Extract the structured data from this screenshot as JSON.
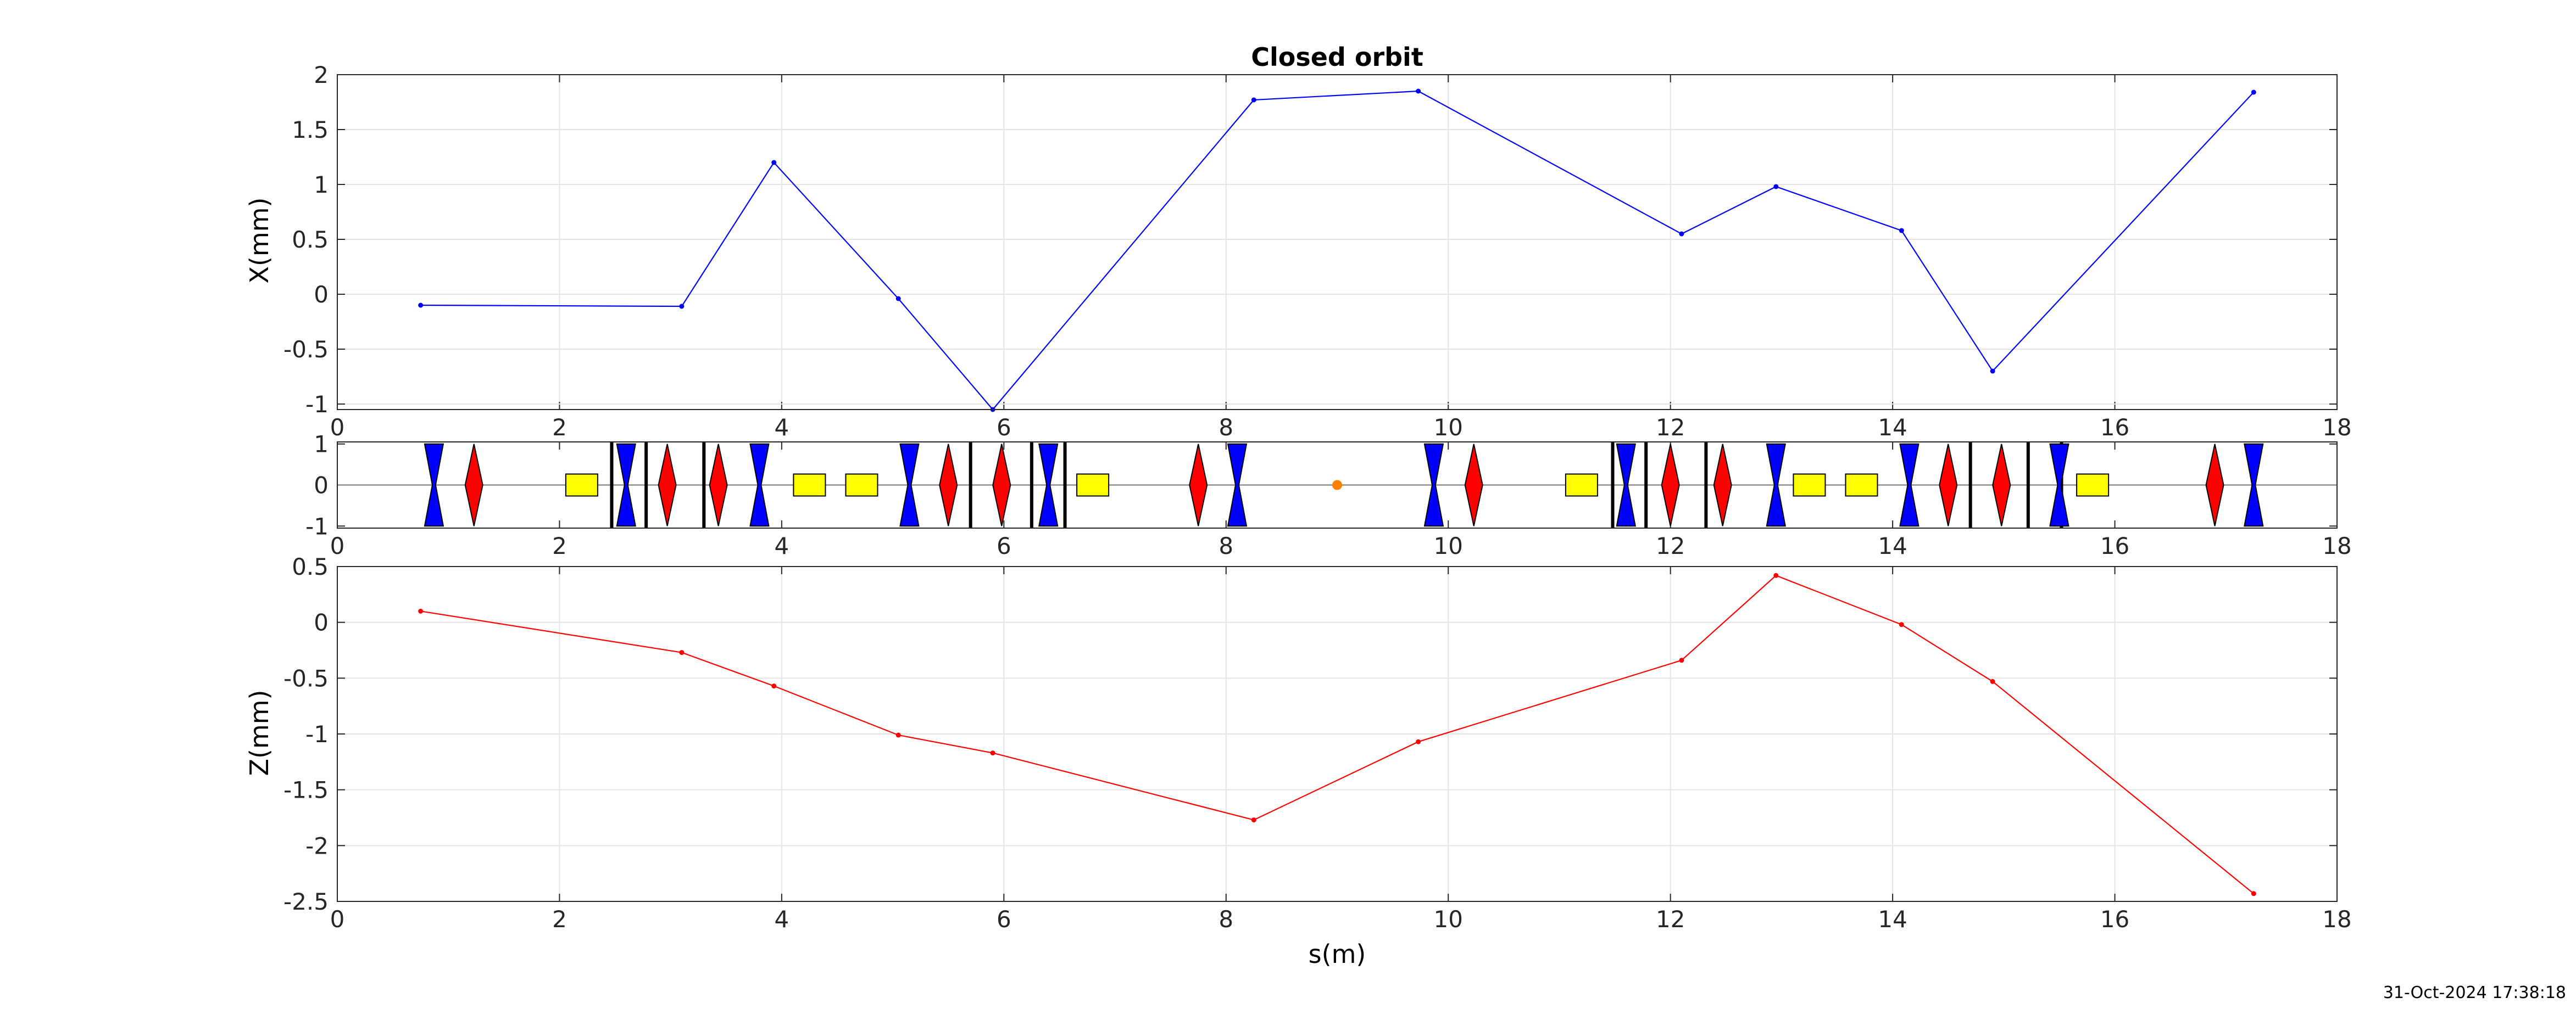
{
  "timestamp": "31-Oct-2024 17:38:18",
  "chart_data": [
    {
      "type": "line",
      "title": "Closed orbit",
      "xlabel": "",
      "ylabel": "X(mm)",
      "xlim": [
        0,
        18
      ],
      "ylim": [
        -1.05,
        2
      ],
      "xticks": [
        "0",
        "2",
        "4",
        "6",
        "8",
        "10",
        "12",
        "14",
        "16",
        "18"
      ],
      "yticks": [
        "-1",
        "-0.5",
        "0",
        "0.5",
        "1",
        "1.5",
        "2"
      ],
      "grid": true,
      "color": "#0000ff",
      "x": [
        0.75,
        3.1,
        3.93,
        5.05,
        5.9,
        8.25,
        9.73,
        12.1,
        12.95,
        14.08,
        14.9,
        17.25
      ],
      "y": [
        -0.1,
        -0.11,
        1.2,
        -0.04,
        -1.05,
        1.77,
        1.85,
        0.55,
        0.98,
        0.58,
        -0.7,
        1.84
      ]
    },
    {
      "type": "lattice",
      "xlim": [
        0,
        18
      ],
      "ylim": [
        -1.05,
        1.05
      ],
      "xticks": [
        "0",
        "2",
        "4",
        "6",
        "8",
        "10",
        "12",
        "14",
        "16",
        "18"
      ],
      "yticks": [
        "-1",
        "0",
        "1"
      ],
      "defocusing_quads": [
        0.87,
        2.6,
        3.8,
        5.15,
        6.4,
        8.1,
        9.87,
        11.6,
        12.95,
        14.15,
        15.5,
        17.25
      ],
      "focusing_quads": [
        1.23,
        2.97,
        3.43,
        5.5,
        5.98,
        7.75,
        10.23,
        12.0,
        12.47,
        14.5,
        14.98,
        16.9
      ],
      "dipoles": [
        2.2,
        4.25,
        4.72,
        6.8,
        11.2,
        13.25,
        13.72,
        15.8
      ],
      "markers": [
        2.47,
        2.78,
        3.3,
        5.7,
        6.25,
        6.55,
        11.48,
        11.78,
        12.32,
        14.7,
        15.22,
        15.52
      ],
      "point": [
        9.0
      ],
      "colors": {
        "focusing": "#ff0000",
        "defocusing": "#0000ff",
        "dipole": "#ffff00",
        "point": "#ff7f00"
      }
    },
    {
      "type": "line",
      "xlabel": "s(m)",
      "ylabel": "Z(mm)",
      "xlim": [
        0,
        18
      ],
      "ylim": [
        -2.5,
        0.5
      ],
      "xticks": [
        "0",
        "2",
        "4",
        "6",
        "8",
        "10",
        "12",
        "14",
        "16",
        "18"
      ],
      "yticks": [
        "-2.5",
        "-2",
        "-1.5",
        "-1",
        "-0.5",
        "0",
        "0.5"
      ],
      "grid": true,
      "color": "#ff0000",
      "x": [
        0.75,
        3.1,
        3.93,
        5.05,
        5.9,
        8.25,
        9.73,
        12.1,
        12.95,
        14.08,
        14.9,
        17.25
      ],
      "y": [
        0.1,
        -0.27,
        -0.57,
        -1.01,
        -1.17,
        -1.77,
        -1.07,
        -0.34,
        0.42,
        -0.02,
        -0.53,
        -2.43
      ]
    }
  ]
}
